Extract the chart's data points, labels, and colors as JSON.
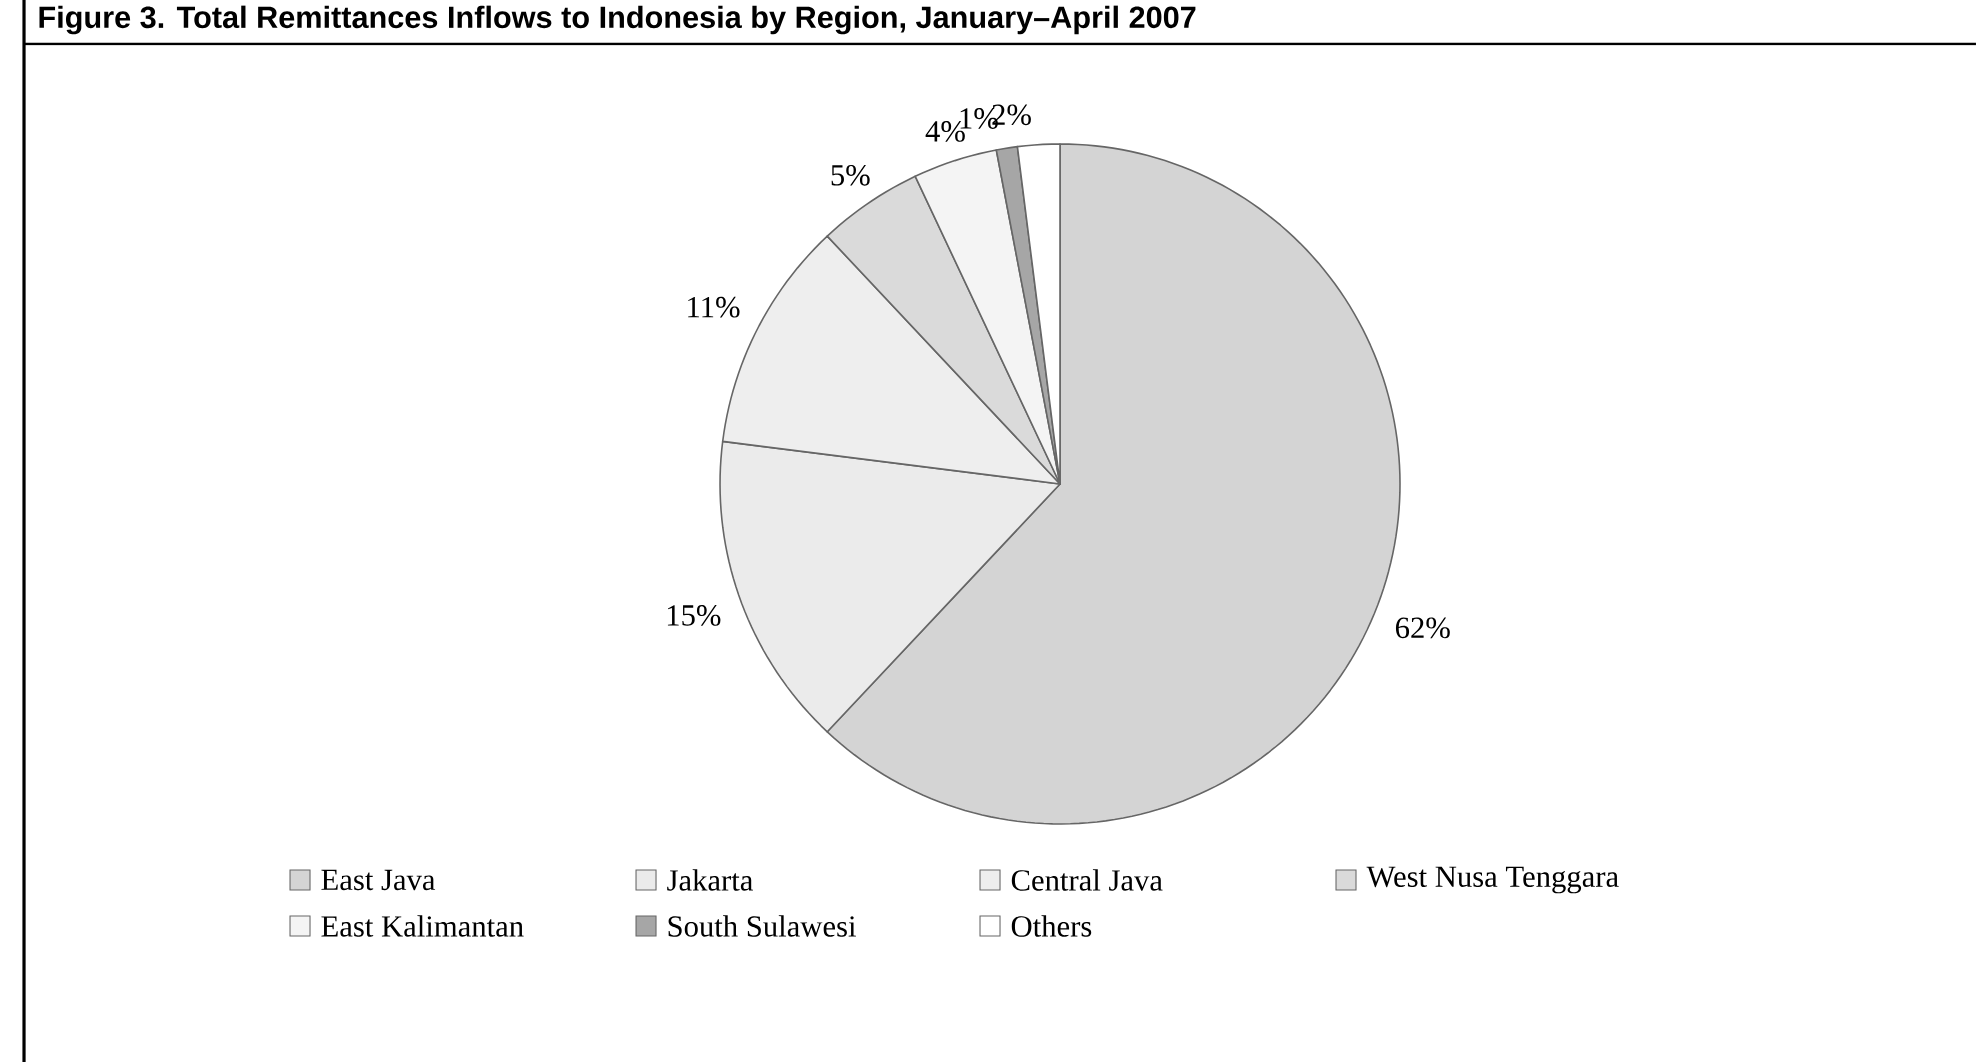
{
  "chart_data": {
    "type": "pie",
    "title": "Figure 3. Total Remittances Inflows to Indonesia by Region, January–April 2007",
    "categories": [
      "East Java",
      "Jakarta",
      "Central Java",
      "West Nusa Tenggara",
      "East Kalimantan",
      "South Sulawesi",
      "Others"
    ],
    "values": [
      62,
      15,
      11,
      5,
      4,
      1,
      2
    ],
    "value_labels": [
      "62%",
      "15%",
      "11%",
      "5%",
      "4%",
      "1%",
      "2%"
    ],
    "colors": [
      "#d4d4d4",
      "#ebebeb",
      "#eeeeee",
      "#dadada",
      "#f4f4f4",
      "#a6a6a6",
      "#ffffff"
    ],
    "legend": "bottom"
  }
}
